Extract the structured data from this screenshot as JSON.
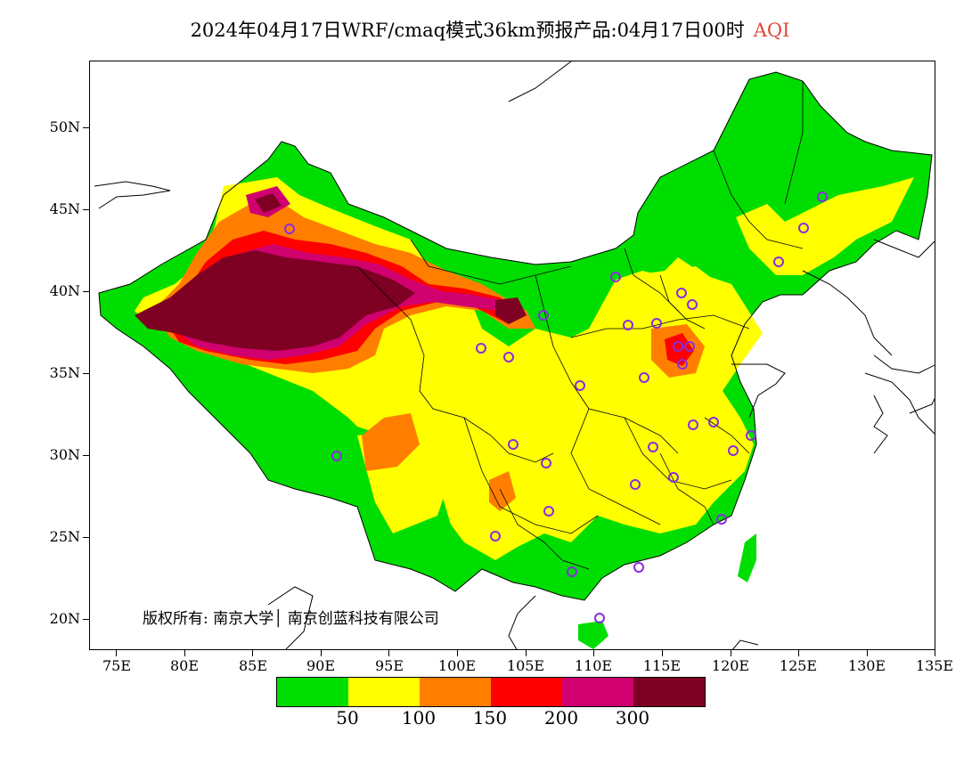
{
  "header": {
    "title": "2024年04月17日WRF/cmaq模式36km预报产品:04月17日00时",
    "variable": "AQI"
  },
  "axes": {
    "latitude_ticks": [
      "50N",
      "45N",
      "40N",
      "35N",
      "30N",
      "25N",
      "20N"
    ],
    "longitude_ticks": [
      "75E",
      "80E",
      "85E",
      "90E",
      "95E",
      "100E",
      "105E",
      "110E",
      "115E",
      "120E",
      "125E",
      "130E",
      "135E"
    ]
  },
  "copyright": "版权所有: 南京大学│ 南京创蓝科技有限公司",
  "legend": {
    "colors": [
      "#00dd00",
      "#ffff00",
      "#ff7e00",
      "#ff0000",
      "#d0006f",
      "#7e0023"
    ],
    "labels": [
      "50",
      "100",
      "150",
      "200",
      "300"
    ]
  },
  "map": {
    "region": "China",
    "colors": {
      "good": "#00dd00",
      "moderate": "#ffff00",
      "usg": "#ff7e00",
      "unhealthy": "#ff0000",
      "very_unhealthy": "#d0006f",
      "hazardous": "#7e0023",
      "site_marker": "#8a2be2"
    }
  }
}
